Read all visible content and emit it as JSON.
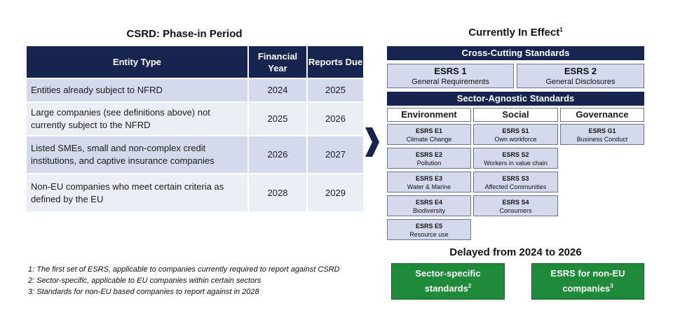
{
  "left": {
    "title": "CSRD: Phase-in Period",
    "headers": [
      "Entity Type",
      "Financial Year",
      "Reports Due"
    ],
    "rows": [
      {
        "entity": "Entities already subject to NFRD",
        "financial_year": "2024",
        "reports_due": "2025"
      },
      {
        "entity": "Large companies (see definitions above) not currently subject to the NFRD",
        "financial_year": "2025",
        "reports_due": "2026"
      },
      {
        "entity": "Listed SMEs, small and non-complex credit institutions, and captive insurance companies",
        "financial_year": "2026",
        "reports_due": "2027"
      },
      {
        "entity": "Non-EU companies who meet certain criteria as defined by the EU",
        "financial_year": "2028",
        "reports_due": "2029"
      }
    ],
    "footnotes": [
      "1: The first set of ESRS, applicable to companies currently required to report against CSRD",
      "2: Sector-specific,  applicable to EU companies within certain sectors",
      "3: Standards for non-EU based companies to report against in 2028"
    ]
  },
  "arrow_icon": "chevron-right-icon",
  "right": {
    "title": "Currently In Effect",
    "title_sup": "1",
    "cross_cutting": {
      "label": "Cross-Cutting Standards",
      "items": [
        {
          "code": "ESRS 1",
          "name": "General Requirements"
        },
        {
          "code": "ESRS 2",
          "name": "General Disclosures"
        }
      ]
    },
    "sector_agnostic": {
      "label": "Sector-Agnostic Standards",
      "pillars": [
        "Environment",
        "Social",
        "Governance"
      ],
      "environment": [
        {
          "code": "ESRS E1",
          "name": "Climate Change"
        },
        {
          "code": "ESRS E2",
          "name": "Pollution"
        },
        {
          "code": "ESRS E3",
          "name": "Water & Marine"
        },
        {
          "code": "ESRS E4",
          "name": "Biodiversity"
        },
        {
          "code": "ESRS E5",
          "name": "Resource use"
        }
      ],
      "social": [
        {
          "code": "ESRS S1",
          "name": "Own workforce"
        },
        {
          "code": "ESRS S2",
          "name": "Workers in value chain"
        },
        {
          "code": "ESRS S3",
          "name": "Affected Communities"
        },
        {
          "code": "ESRS S4",
          "name": "Consumers"
        }
      ],
      "governance": [
        {
          "code": "ESRS G1",
          "name": "Business Conduct"
        }
      ]
    },
    "delayed": {
      "title": "Delayed from 2024 to 2026",
      "items": [
        {
          "label": "Sector-specific standards",
          "sup": "2"
        },
        {
          "label": "ESRS for non-EU companies",
          "sup": "3"
        }
      ]
    }
  },
  "colors": {
    "navy": "#16244f",
    "light_blue": "#d5d9ec",
    "pale_blue": "#eceef6",
    "green": "#1f8b3a"
  }
}
